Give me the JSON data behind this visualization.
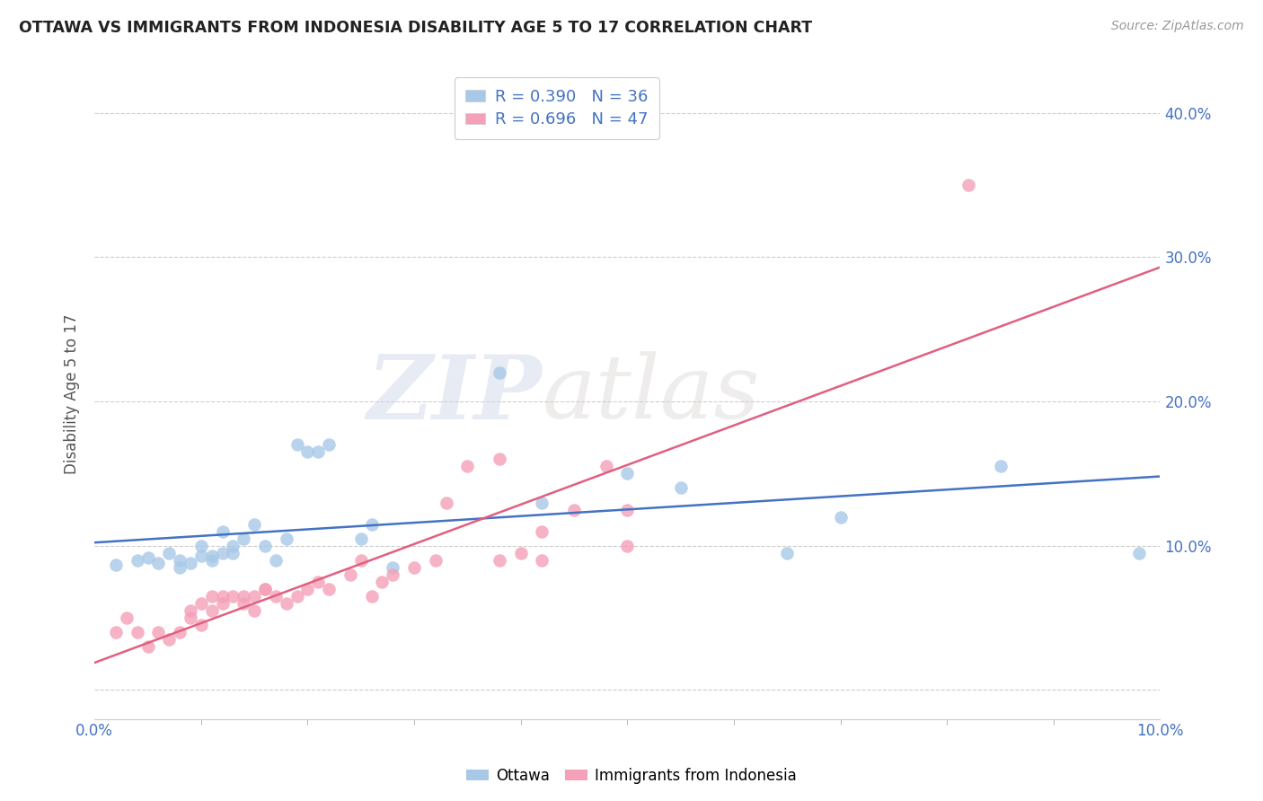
{
  "title": "OTTAWA VS IMMIGRANTS FROM INDONESIA DISABILITY AGE 5 TO 17 CORRELATION CHART",
  "source": "Source: ZipAtlas.com",
  "ylabel": "Disability Age 5 to 17",
  "legend_label_1": "Ottawa",
  "legend_label_2": "Immigrants from Indonesia",
  "r1": 0.39,
  "n1": 36,
  "r2": 0.696,
  "n2": 47,
  "color_blue": "#a8c8e8",
  "color_pink": "#f4a0b8",
  "color_blue_line": "#4472c4",
  "color_pink_line": "#e06080",
  "color_blue_text": "#4472c4",
  "color_pink_text": "#e06080",
  "bg_color": "#ffffff",
  "watermark_zip": "ZIP",
  "watermark_atlas": "atlas",
  "xlim": [
    0.0,
    0.1
  ],
  "ylim": [
    -0.02,
    0.43
  ],
  "xlim_data": [
    0.0,
    0.1
  ],
  "xtick_positions": [
    0.0,
    0.1
  ],
  "xtick_labels": [
    "0.0%",
    "10.0%"
  ],
  "yticks": [
    0.0,
    0.1,
    0.2,
    0.3,
    0.4
  ],
  "ytick_labels": [
    "",
    "10.0%",
    "20.0%",
    "30.0%",
    "40.0%"
  ],
  "grid_yticks": [
    0.0,
    0.1,
    0.2,
    0.3,
    0.4
  ],
  "ottawa_x": [
    0.002,
    0.004,
    0.005,
    0.006,
    0.007,
    0.008,
    0.008,
    0.009,
    0.01,
    0.01,
    0.011,
    0.011,
    0.012,
    0.012,
    0.013,
    0.013,
    0.014,
    0.015,
    0.016,
    0.017,
    0.018,
    0.019,
    0.02,
    0.021,
    0.022,
    0.025,
    0.026,
    0.028,
    0.038,
    0.042,
    0.05,
    0.055,
    0.065,
    0.07,
    0.085,
    0.098
  ],
  "ottawa_y": [
    0.087,
    0.09,
    0.092,
    0.088,
    0.095,
    0.09,
    0.085,
    0.088,
    0.093,
    0.1,
    0.09,
    0.093,
    0.095,
    0.11,
    0.095,
    0.1,
    0.105,
    0.115,
    0.1,
    0.09,
    0.105,
    0.17,
    0.165,
    0.165,
    0.17,
    0.105,
    0.115,
    0.085,
    0.22,
    0.13,
    0.15,
    0.14,
    0.095,
    0.12,
    0.155,
    0.095
  ],
  "indonesia_x": [
    0.002,
    0.003,
    0.004,
    0.005,
    0.006,
    0.007,
    0.008,
    0.009,
    0.009,
    0.01,
    0.01,
    0.011,
    0.011,
    0.012,
    0.012,
    0.013,
    0.014,
    0.014,
    0.015,
    0.015,
    0.016,
    0.016,
    0.017,
    0.018,
    0.019,
    0.02,
    0.021,
    0.022,
    0.024,
    0.025,
    0.026,
    0.027,
    0.028,
    0.03,
    0.032,
    0.033,
    0.035,
    0.038,
    0.04,
    0.042,
    0.045,
    0.048,
    0.05,
    0.038,
    0.042,
    0.082,
    0.05
  ],
  "indonesia_y": [
    0.04,
    0.05,
    0.04,
    0.03,
    0.04,
    0.035,
    0.04,
    0.05,
    0.055,
    0.045,
    0.06,
    0.055,
    0.065,
    0.06,
    0.065,
    0.065,
    0.06,
    0.065,
    0.055,
    0.065,
    0.07,
    0.07,
    0.065,
    0.06,
    0.065,
    0.07,
    0.075,
    0.07,
    0.08,
    0.09,
    0.065,
    0.075,
    0.08,
    0.085,
    0.09,
    0.13,
    0.155,
    0.09,
    0.095,
    0.09,
    0.125,
    0.155,
    0.1,
    0.16,
    0.11,
    0.35,
    0.125
  ]
}
